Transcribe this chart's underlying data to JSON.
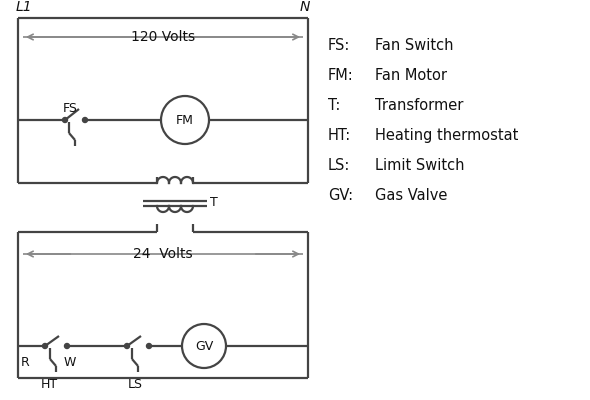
{
  "bg_color": "#ffffff",
  "line_color": "#444444",
  "arrow_color": "#888888",
  "text_color": "#111111",
  "legend": [
    [
      "FS:",
      "Fan Switch"
    ],
    [
      "FM:",
      "Fan Motor"
    ],
    [
      "T:",
      "Transformer"
    ],
    [
      "HT:",
      "Heating thermostat"
    ],
    [
      "LS:",
      "Limit Switch"
    ],
    [
      "GV:",
      "Gas Valve"
    ]
  ],
  "L1_label": "L1",
  "N_label": "N",
  "volts120": "120 Volts",
  "volts24": "24  Volts",
  "T_label": "T",
  "R_label": "R",
  "W_label": "W",
  "HT_label": "HT",
  "LS_label": "LS",
  "FS_label": "FS",
  "FM_label": "FM",
  "GV_label": "GV"
}
